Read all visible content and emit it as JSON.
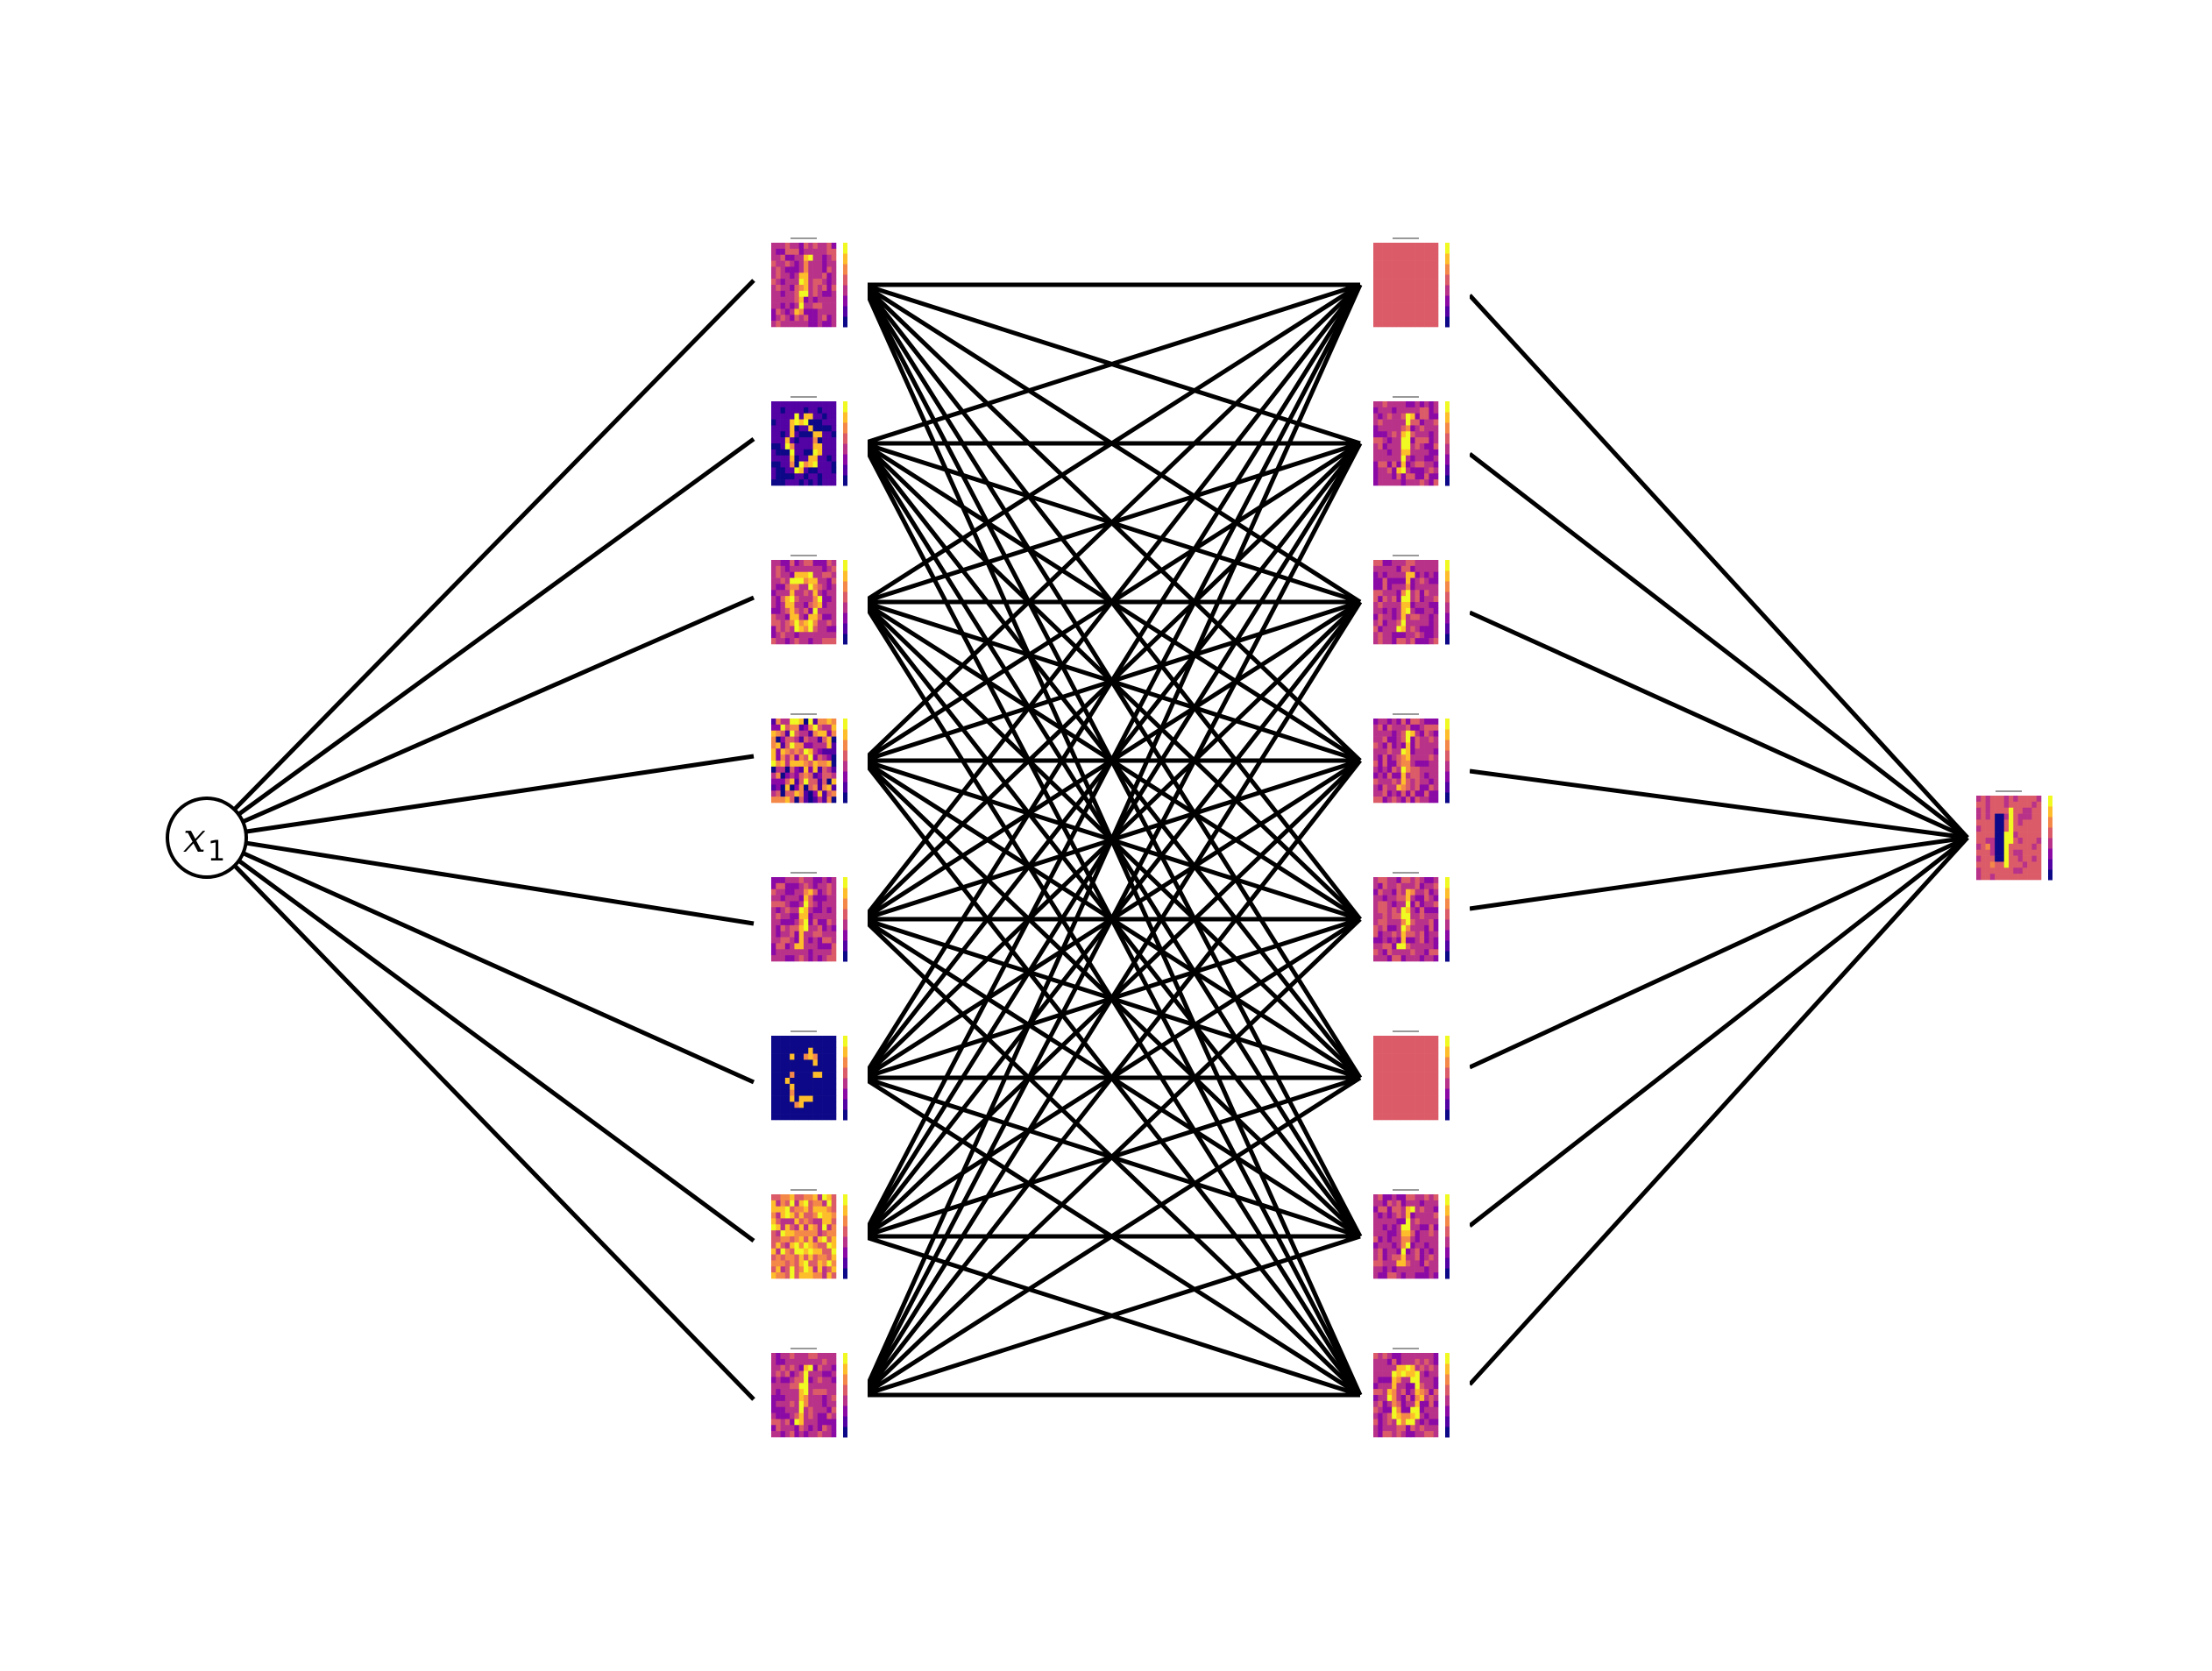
{
  "input_node": {
    "label": "x",
    "subscript": "1"
  },
  "layers": {
    "hidden_1": {
      "count": 8,
      "maps": [
        "digit-1",
        "digit-0-ring",
        "digit-0",
        "noise",
        "digit-1",
        "digit-0-ring-dark",
        "noise-bright",
        "digit-1"
      ]
    },
    "hidden_2": {
      "count": 8,
      "maps": [
        "flat",
        "digit-1",
        "digit-1",
        "digit-1",
        "digit-1",
        "flat",
        "digit-1",
        "digit-0"
      ]
    },
    "output": {
      "count": 1,
      "maps": [
        "digit-1-signed"
      ]
    }
  },
  "connections": {
    "input_to_hidden_1": "all",
    "hidden_1_to_hidden_2": "all",
    "hidden_2_to_output": "all"
  },
  "colors": {
    "edge": "#000000",
    "node_stroke": "#000000",
    "node_fill": "#ffffff",
    "colormap": [
      "#0d0887",
      "#5302a3",
      "#8b0aa5",
      "#b83289",
      "#db5c68",
      "#f48849",
      "#febd2a",
      "#f0f921"
    ]
  }
}
